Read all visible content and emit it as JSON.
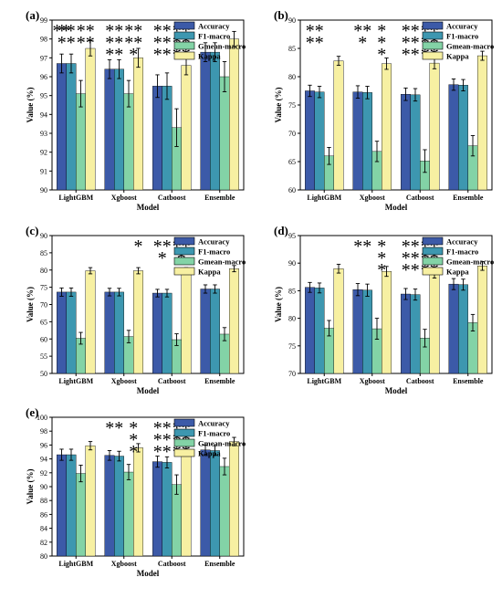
{
  "colors": {
    "Accuracy": "#3c5aa8",
    "F1-macro": "#3d97b0",
    "Gmean-macro": "#83d3a6",
    "Kappa": "#f7f0a2"
  },
  "chart_data": [
    {
      "panel_label": "(a)",
      "type": "bar",
      "categories": [
        "LightGBM",
        "Xgboost",
        "Catboost",
        "Ensemble"
      ],
      "series": [
        {
          "name": "Accuracy",
          "values": [
            96.7,
            96.4,
            95.5,
            97.3
          ],
          "error": [
            0.5,
            0.5,
            0.6,
            0.5
          ]
        },
        {
          "name": "F1-macro",
          "values": [
            96.7,
            96.4,
            95.5,
            97.3
          ],
          "error": [
            0.5,
            0.5,
            0.7,
            0.5
          ]
        },
        {
          "name": "Gmean-macro",
          "values": [
            95.1,
            95.1,
            93.3,
            96.0
          ],
          "error": [
            0.7,
            0.7,
            1.0,
            0.8
          ]
        },
        {
          "name": "Kappa",
          "values": [
            97.5,
            97.0,
            96.6,
            98.0
          ],
          "error": [
            0.4,
            0.5,
            0.5,
            0.4
          ]
        }
      ],
      "xlabel": "Model",
      "ylabel": "Value (%)",
      "ylim": [
        90,
        99
      ],
      "yticks": [
        "90",
        "91",
        "92",
        "93",
        "94",
        "95",
        "96",
        "97",
        "98",
        "99"
      ],
      "legend_position": "top-right",
      "significance": [
        {
          "category": 0,
          "series": "Accuracy",
          "stars": [
            "**"
          ]
        },
        {
          "category": 0,
          "series": "Accuracy",
          "stars": [
            "**",
            "**"
          ],
          "span": 2
        },
        {
          "category": 0,
          "series": "Gmean-macro",
          "stars": [
            "**",
            "**"
          ],
          "span": 2
        },
        {
          "category": 1,
          "series": "Accuracy",
          "stars": [
            "**",
            "**",
            "**"
          ],
          "span": 2
        },
        {
          "category": 1,
          "series": "Gmean-macro",
          "stars": [
            "**",
            "**",
            "*"
          ],
          "span": 2
        },
        {
          "category": 2,
          "series": "Accuracy",
          "stars": [
            "**",
            "**",
            "**"
          ],
          "span": 2
        },
        {
          "category": 2,
          "series": "Gmean-macro",
          "stars": [
            "**",
            "**",
            "**"
          ],
          "span": 2
        }
      ]
    },
    {
      "panel_label": "(b)",
      "type": "bar",
      "categories": [
        "LightGBM",
        "Xgboost",
        "Catboost",
        "Ensemble"
      ],
      "series": [
        {
          "name": "Accuracy",
          "values": [
            77.5,
            77.3,
            76.9,
            78.6
          ],
          "error": [
            1.0,
            1.1,
            1.1,
            1.0
          ]
        },
        {
          "name": "F1-macro",
          "values": [
            77.3,
            77.2,
            76.8,
            78.5
          ],
          "error": [
            1.0,
            1.1,
            1.1,
            1.0
          ]
        },
        {
          "name": "Gmean-macro",
          "values": [
            66.0,
            66.8,
            65.1,
            67.8
          ],
          "error": [
            1.5,
            1.8,
            2.0,
            1.8
          ]
        },
        {
          "name": "Kappa",
          "values": [
            82.8,
            82.3,
            82.4,
            83.7
          ],
          "error": [
            0.8,
            1.0,
            1.0,
            0.8
          ]
        }
      ],
      "xlabel": "Model",
      "ylabel": "Value (%)",
      "ylim": [
        60,
        90
      ],
      "yticks": [
        "60",
        "65",
        "70",
        "75",
        "80",
        "85",
        "90"
      ],
      "legend_position": "top-right",
      "significance": [
        {
          "category": 0,
          "series": "Accuracy",
          "stars": [
            "**",
            "**"
          ],
          "span": 2
        },
        {
          "category": 1,
          "series": "Accuracy",
          "stars": [
            "**",
            "*"
          ],
          "span": 2
        },
        {
          "category": 1,
          "series": "Gmean-macro",
          "stars": [
            "*",
            "*",
            "*"
          ],
          "span": 2
        },
        {
          "category": 2,
          "series": "Accuracy",
          "stars": [
            "**",
            "**",
            "**"
          ],
          "span": 2
        },
        {
          "category": 2,
          "series": "Gmean-macro",
          "stars": [
            "**",
            "**",
            "**"
          ],
          "span": 2
        }
      ]
    },
    {
      "panel_label": "(c)",
      "type": "bar",
      "categories": [
        "LightGBM",
        "Xgboost",
        "Catboost",
        "Ensemble"
      ],
      "series": [
        {
          "name": "Accuracy",
          "values": [
            73.6,
            73.6,
            73.3,
            74.5
          ],
          "error": [
            1.2,
            1.1,
            1.1,
            1.2
          ]
        },
        {
          "name": "F1-macro",
          "values": [
            73.6,
            73.6,
            73.3,
            74.5
          ],
          "error": [
            1.2,
            1.1,
            1.1,
            1.2
          ]
        },
        {
          "name": "Gmean-macro",
          "values": [
            60.2,
            60.7,
            59.8,
            61.4
          ],
          "error": [
            1.7,
            1.8,
            1.7,
            1.9
          ]
        },
        {
          "name": "Kappa",
          "values": [
            79.8,
            79.8,
            79.8,
            80.4
          ],
          "error": [
            0.9,
            0.9,
            0.9,
            0.9
          ]
        }
      ],
      "xlabel": "Model",
      "ylabel": "Value (%)",
      "ylim": [
        50,
        90
      ],
      "yticks": [
        "50",
        "55",
        "60",
        "65",
        "70",
        "75",
        "80",
        "85",
        "90"
      ],
      "legend_position": "top-right",
      "significance": [
        {
          "category": 1,
          "series": "Kappa",
          "stars": [
            "*"
          ],
          "span": 1
        },
        {
          "category": 2,
          "series": "Accuracy",
          "stars": [
            "**",
            "*"
          ],
          "span": 2
        },
        {
          "category": 2,
          "series": "Gmean-macro",
          "stars": [
            "**",
            "*"
          ],
          "span": 2
        }
      ]
    },
    {
      "panel_label": "(d)",
      "type": "bar",
      "categories": [
        "LightGBM",
        "Xgboost",
        "Catboost",
        "Ensemble"
      ],
      "series": [
        {
          "name": "Accuracy",
          "values": [
            85.6,
            85.2,
            84.4,
            86.2
          ],
          "error": [
            0.9,
            1.1,
            1.0,
            1.0
          ]
        },
        {
          "name": "F1-macro",
          "values": [
            85.5,
            85.1,
            84.3,
            86.1
          ],
          "error": [
            0.9,
            1.1,
            1.0,
            1.0
          ]
        },
        {
          "name": "Gmean-macro",
          "values": [
            78.2,
            78.1,
            76.4,
            79.2
          ],
          "error": [
            1.4,
            1.9,
            1.6,
            1.5
          ]
        },
        {
          "name": "Kappa",
          "values": [
            89.0,
            88.5,
            88.1,
            89.5
          ],
          "error": [
            0.8,
            0.9,
            0.8,
            0.8
          ]
        }
      ],
      "xlabel": "Model",
      "ylabel": "Value (%)",
      "ylim": [
        70,
        95
      ],
      "yticks": [
        "70",
        "75",
        "80",
        "85",
        "90",
        "95"
      ],
      "legend_position": "top-right",
      "significance": [
        {
          "category": 1,
          "series": "Accuracy",
          "stars": [
            "**"
          ],
          "span": 2
        },
        {
          "category": 1,
          "series": "Gmean-macro",
          "stars": [
            "*",
            "*",
            "*"
          ],
          "span": 2
        },
        {
          "category": 2,
          "series": "Accuracy",
          "stars": [
            "**",
            "**",
            "**"
          ],
          "span": 2
        },
        {
          "category": 2,
          "series": "Gmean-macro",
          "stars": [
            "**",
            "**",
            "**"
          ],
          "span": 2
        }
      ]
    },
    {
      "panel_label": "(e)",
      "type": "bar",
      "categories": [
        "LightGBM",
        "Xgboost",
        "Catboost",
        "Ensemble"
      ],
      "series": [
        {
          "name": "Accuracy",
          "values": [
            94.6,
            94.5,
            93.6,
            95.3
          ],
          "error": [
            0.8,
            0.7,
            0.8,
            0.7
          ]
        },
        {
          "name": "F1-macro",
          "values": [
            94.6,
            94.4,
            93.5,
            95.2
          ],
          "error": [
            0.8,
            0.7,
            0.8,
            0.7
          ]
        },
        {
          "name": "Gmean-macro",
          "values": [
            91.9,
            92.1,
            90.3,
            92.9
          ],
          "error": [
            1.2,
            1.1,
            1.4,
            1.2
          ]
        },
        {
          "name": "Kappa",
          "values": [
            95.9,
            95.6,
            95.2,
            96.5
          ],
          "error": [
            0.6,
            0.6,
            0.6,
            0.6
          ]
        }
      ],
      "xlabel": "Model",
      "ylabel": "Value (%)",
      "ylim": [
        80,
        100
      ],
      "yticks": [
        "80",
        "82",
        "84",
        "86",
        "88",
        "90",
        "92",
        "94",
        "96",
        "98",
        "100"
      ],
      "legend_position": "top-right",
      "significance": [
        {
          "category": 1,
          "series": "Accuracy",
          "stars": [
            "**"
          ],
          "span": 2
        },
        {
          "category": 1,
          "series": "Gmean-macro",
          "stars": [
            "*",
            "*",
            "*"
          ],
          "span": 2
        },
        {
          "category": 2,
          "series": "Accuracy",
          "stars": [
            "**",
            "**",
            "**"
          ],
          "span": 2
        },
        {
          "category": 2,
          "series": "Gmean-macro",
          "stars": [
            "**",
            "**",
            "**"
          ],
          "span": 2
        }
      ]
    }
  ]
}
